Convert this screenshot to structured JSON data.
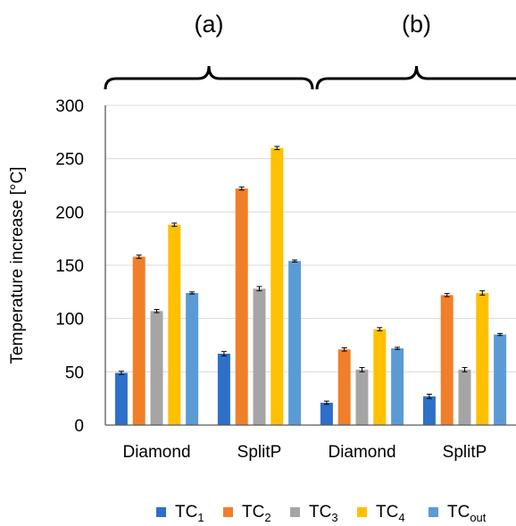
{
  "chart_data": {
    "type": "bar",
    "ylabel": "Temperature increase [°C]",
    "xlabel": "",
    "ylim": [
      0,
      300
    ],
    "yticks": [
      0,
      50,
      100,
      150,
      200,
      250,
      300
    ],
    "grid": true,
    "legend_position": "bottom",
    "error_bars": true,
    "group_labels": [
      "(a)",
      "(b)"
    ],
    "categories": [
      "Diamond",
      "SplitP",
      "Diamond",
      "SplitP"
    ],
    "series": [
      {
        "name": "TC",
        "sub": "1",
        "color": "#2e6fc9",
        "values": [
          49,
          67,
          21,
          27
        ],
        "errors": [
          1.5,
          2,
          1.5,
          2
        ]
      },
      {
        "name": "TC",
        "sub": "2",
        "color": "#f07f2a",
        "values": [
          158,
          222,
          71,
          122
        ],
        "errors": [
          1.5,
          1.5,
          1.5,
          1.5
        ]
      },
      {
        "name": "TC",
        "sub": "3",
        "color": "#a5a5a5",
        "values": [
          107,
          128,
          52,
          52
        ],
        "errors": [
          1.5,
          2,
          2,
          2
        ]
      },
      {
        "name": "TC",
        "sub": "4",
        "color": "#ffc000",
        "values": [
          188,
          260,
          90,
          124
        ],
        "errors": [
          1.5,
          1.5,
          1.5,
          2
        ]
      },
      {
        "name": "TC",
        "sub": "out",
        "color": "#5b9bd5",
        "values": [
          124,
          154,
          72,
          85
        ],
        "errors": [
          1,
          1,
          1,
          1
        ]
      }
    ]
  }
}
